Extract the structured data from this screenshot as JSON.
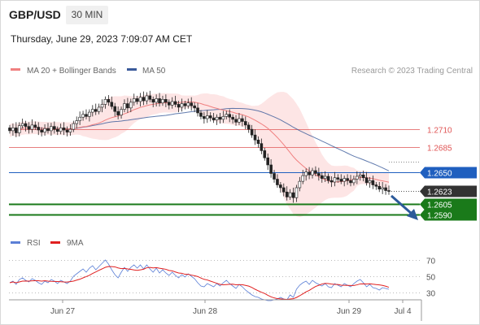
{
  "header": {
    "symbol": "GBP/USD",
    "timeframe": "30 MIN",
    "datetime": "Thursday, June 29, 2023 7:09:07 AM CET"
  },
  "credit": "Research © 2023 Trading Central",
  "colors": {
    "resistance": "#e05555",
    "pivot": "#1f5fbf",
    "support": "#1a7a1a",
    "last": "#333333",
    "ma20": "#f08080",
    "ma50": "#3a5a9a",
    "bollinger": "#fde2e2",
    "rsi": "#5b7fd6",
    "rsi_ma": "#e02020",
    "arrow": "#2c5a9a"
  },
  "chart_data": [
    {
      "type": "candlestick",
      "legend": [
        "MA 20 + Bollinger Bands",
        "MA 50"
      ],
      "x_labels": [
        "Jun 27",
        "Jun 28",
        "Jun 29",
        "Jul 4"
      ],
      "ylim": [
        1.2579,
        1.2782
      ],
      "levels": [
        {
          "value": 1.271,
          "label": "1.2710",
          "kind": "resistance"
        },
        {
          "value": 1.2685,
          "label": "1.2685",
          "kind": "resistance"
        },
        {
          "value": 1.265,
          "label": "1.2650",
          "kind": "pivot"
        },
        {
          "value": 1.2623,
          "label": "1.2623",
          "kind": "last"
        },
        {
          "value": 1.2605,
          "label": "1.2605",
          "kind": "support"
        },
        {
          "value": 1.259,
          "label": "1.2590",
          "kind": "support"
        }
      ],
      "closes": [
        1.2708,
        1.2712,
        1.2705,
        1.2715,
        1.2718,
        1.2714,
        1.271,
        1.2716,
        1.2713,
        1.2709,
        1.2706,
        1.2711,
        1.2708,
        1.2714,
        1.271,
        1.2707,
        1.2712,
        1.2709,
        1.2706,
        1.271,
        1.2718,
        1.2722,
        1.2727,
        1.2731,
        1.2728,
        1.2734,
        1.2738,
        1.2735,
        1.2741,
        1.2745,
        1.2752,
        1.2748,
        1.2742,
        1.2735,
        1.273,
        1.2738,
        1.2746,
        1.274,
        1.2748,
        1.2753,
        1.2749,
        1.2755,
        1.275,
        1.2757,
        1.2752,
        1.2748,
        1.2753,
        1.2747,
        1.2752,
        1.2748,
        1.2744,
        1.2749,
        1.2745,
        1.2741,
        1.2746,
        1.2743,
        1.2747,
        1.2743,
        1.274,
        1.2733,
        1.2728,
        1.2725,
        1.2729,
        1.2726,
        1.2723,
        1.2727,
        1.2724,
        1.2728,
        1.2731,
        1.2727,
        1.2724,
        1.272,
        1.2725,
        1.2721,
        1.2716,
        1.271,
        1.2702,
        1.2695,
        1.269,
        1.268,
        1.267,
        1.266,
        1.2648,
        1.264,
        1.2632,
        1.2628,
        1.2622,
        1.2615,
        1.2621,
        1.2614,
        1.2628,
        1.2637,
        1.2645,
        1.265,
        1.2646,
        1.2652,
        1.2648,
        1.2645,
        1.2641,
        1.2644,
        1.2638,
        1.2636,
        1.2642,
        1.264,
        1.2637,
        1.2641,
        1.2638,
        1.2635,
        1.264,
        1.2644,
        1.2646,
        1.2642,
        1.2635,
        1.2638,
        1.2632,
        1.263,
        1.2626,
        1.2628,
        1.2624,
        1.2623
      ]
    },
    {
      "type": "line",
      "legend": [
        "RSI",
        "9MA"
      ],
      "ylim": [
        20,
        80
      ],
      "y_ticks": [
        "70",
        "50",
        "30"
      ],
      "rsi": [
        42,
        44,
        40,
        46,
        48,
        45,
        43,
        47,
        45,
        42,
        40,
        44,
        42,
        46,
        44,
        41,
        45,
        43,
        41,
        44,
        50,
        53,
        56,
        59,
        55,
        60,
        63,
        58,
        62,
        66,
        70,
        65,
        58,
        52,
        48,
        55,
        61,
        56,
        61,
        64,
        60,
        64,
        59,
        64,
        59,
        55,
        60,
        54,
        58,
        54,
        51,
        55,
        51,
        48,
        52,
        49,
        53,
        50,
        47,
        42,
        38,
        37,
        41,
        39,
        37,
        41,
        38,
        42,
        45,
        41,
        38,
        35,
        40,
        37,
        33,
        30,
        27,
        25,
        24,
        22,
        21,
        20,
        20,
        21,
        22,
        24,
        22,
        21,
        27,
        24,
        34,
        39,
        42,
        44,
        40,
        45,
        42,
        40,
        38,
        41,
        37,
        36,
        41,
        39,
        37,
        41,
        39,
        37,
        41,
        44,
        46,
        42,
        37,
        40,
        36,
        35,
        33,
        36,
        35,
        34
      ]
    }
  ]
}
